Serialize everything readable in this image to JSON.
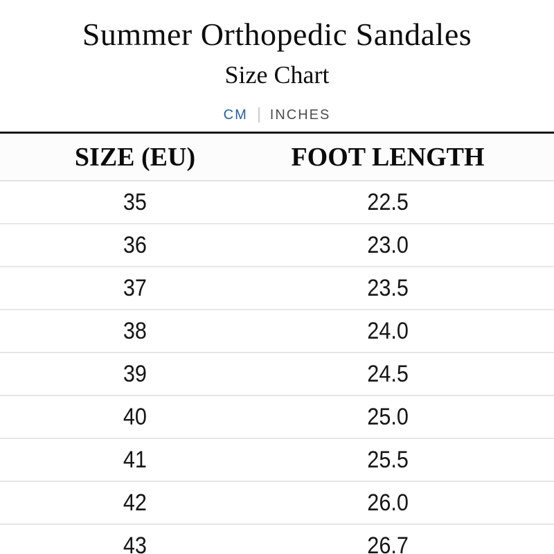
{
  "page": {
    "title": "Summer Orthopedic Sandales",
    "subtitle": "Size Chart"
  },
  "unit_toggle": {
    "active_option": "CM",
    "active_color": "#2b5e97",
    "inactive_color": "#4d4d4d",
    "options": [
      {
        "label": "CM"
      },
      {
        "label": "INCHES"
      }
    ]
  },
  "table": {
    "columns": [
      "SIZE (EU)",
      "FOOT LENGTH"
    ],
    "rows": [
      [
        "35",
        "22.5"
      ],
      [
        "36",
        "23.0"
      ],
      [
        "37",
        "23.5"
      ],
      [
        "38",
        "24.0"
      ],
      [
        "39",
        "24.5"
      ],
      [
        "40",
        "25.0"
      ],
      [
        "41",
        "25.5"
      ],
      [
        "42",
        "26.0"
      ],
      [
        "43",
        "26.7"
      ]
    ]
  }
}
